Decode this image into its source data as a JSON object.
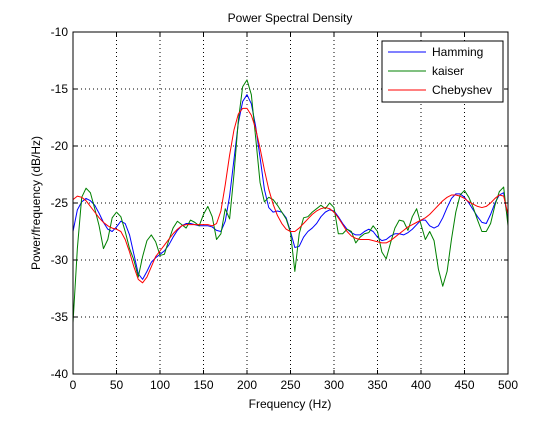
{
  "chart_data": {
    "type": "line",
    "title": "Power Spectral Density",
    "xlabel": "Frequency (Hz)",
    "ylabel": "Power/frequency (dB/Hz)",
    "xlim": [
      0,
      500
    ],
    "ylim": [
      -40,
      -10
    ],
    "xticks": [
      0,
      50,
      100,
      150,
      200,
      250,
      300,
      350,
      400,
      450,
      500
    ],
    "yticks": [
      -40,
      -35,
      -30,
      -25,
      -20,
      -15,
      -10
    ],
    "xtick_labels": [
      "0",
      "50",
      "100",
      "150",
      "200",
      "250",
      "300",
      "350",
      "400",
      "450",
      "500"
    ],
    "ytick_labels": [
      "-40",
      "-35",
      "-30",
      "-25",
      "-20",
      "-15",
      "-10"
    ],
    "grid": true,
    "legend_position": "top-right",
    "series": [
      {
        "name": "Hamming",
        "color": "#0000ff",
        "x": [
          0,
          5,
          10,
          15,
          20,
          25,
          30,
          35,
          40,
          45,
          50,
          55,
          60,
          65,
          70,
          75,
          80,
          85,
          90,
          95,
          100,
          105,
          110,
          115,
          120,
          125,
          130,
          135,
          140,
          145,
          150,
          155,
          160,
          165,
          170,
          175,
          180,
          185,
          190,
          195,
          200,
          205,
          210,
          215,
          220,
          225,
          230,
          235,
          240,
          245,
          250,
          255,
          260,
          265,
          270,
          275,
          280,
          285,
          290,
          295,
          300,
          305,
          310,
          315,
          320,
          325,
          330,
          335,
          340,
          345,
          350,
          355,
          360,
          365,
          370,
          375,
          380,
          385,
          390,
          395,
          400,
          405,
          410,
          415,
          420,
          425,
          430,
          435,
          440,
          445,
          450,
          455,
          460,
          465,
          470,
          475,
          480,
          485,
          490,
          495,
          500
        ],
        "values": [
          -27.5,
          -25.6,
          -24.9,
          -24.6,
          -24.8,
          -25.2,
          -25.9,
          -26.7,
          -27.3,
          -27.5,
          -27.1,
          -26.6,
          -26.8,
          -27.8,
          -29.5,
          -31.2,
          -31.7,
          -31.0,
          -30.2,
          -29.8,
          -29.5,
          -29.2,
          -28.7,
          -28.0,
          -27.4,
          -27.0,
          -26.8,
          -26.8,
          -26.9,
          -27.0,
          -27.0,
          -27.0,
          -27.1,
          -27.4,
          -27.5,
          -26.6,
          -24.4,
          -21.2,
          -18.0,
          -16.1,
          -15.5,
          -16.3,
          -18.3,
          -21.0,
          -23.8,
          -25.4,
          -25.8,
          -25.7,
          -25.8,
          -26.3,
          -27.5,
          -28.9,
          -28.8,
          -28.0,
          -27.5,
          -27.2,
          -26.8,
          -26.2,
          -25.8,
          -25.6,
          -25.7,
          -26.2,
          -26.8,
          -27.3,
          -27.6,
          -27.8,
          -27.8,
          -27.5,
          -27.3,
          -27.5,
          -28.0,
          -28.3,
          -28.2,
          -27.9,
          -27.7,
          -27.7,
          -27.8,
          -27.6,
          -27.3,
          -26.9,
          -26.5,
          -26.5,
          -27.0,
          -27.2,
          -27.0,
          -26.3,
          -25.4,
          -24.6,
          -24.2,
          -24.2,
          -24.5,
          -25.0,
          -25.6,
          -26.2,
          -26.7,
          -26.8,
          -26.0,
          -25.0,
          -24.3,
          -24.1,
          -26.6
        ]
      },
      {
        "name": "kaiser",
        "color": "#008000",
        "x": [
          0,
          5,
          10,
          15,
          20,
          25,
          30,
          35,
          40,
          45,
          50,
          55,
          60,
          65,
          70,
          75,
          80,
          85,
          90,
          95,
          100,
          105,
          110,
          115,
          120,
          125,
          130,
          135,
          140,
          145,
          150,
          155,
          160,
          165,
          170,
          175,
          180,
          185,
          190,
          195,
          200,
          205,
          210,
          215,
          220,
          225,
          230,
          235,
          240,
          245,
          250,
          255,
          260,
          265,
          270,
          275,
          280,
          285,
          290,
          295,
          300,
          305,
          310,
          315,
          320,
          325,
          330,
          335,
          340,
          345,
          350,
          355,
          360,
          365,
          370,
          375,
          380,
          385,
          390,
          395,
          400,
          405,
          410,
          415,
          420,
          425,
          430,
          435,
          440,
          445,
          450,
          455,
          460,
          465,
          470,
          475,
          480,
          485,
          490,
          495,
          500
        ],
        "values": [
          -35.5,
          -29.0,
          -24.5,
          -23.7,
          -24.1,
          -25.5,
          -27.0,
          -29.0,
          -28.2,
          -26.3,
          -25.8,
          -26.2,
          -27.5,
          -29.0,
          -30.0,
          -31.5,
          -29.7,
          -28.3,
          -27.8,
          -28.4,
          -29.6,
          -29.5,
          -28.3,
          -27.2,
          -26.6,
          -26.9,
          -27.2,
          -26.5,
          -26.7,
          -27.0,
          -26.0,
          -25.3,
          -26.2,
          -28.2,
          -27.7,
          -25.5,
          -26.4,
          -22.5,
          -17.8,
          -14.8,
          -14.2,
          -15.5,
          -19.3,
          -23.2,
          -24.9,
          -24.5,
          -24.7,
          -25.2,
          -25.8,
          -26.4,
          -27.6,
          -31.0,
          -27.7,
          -26.3,
          -26.2,
          -25.8,
          -25.5,
          -25.2,
          -25.5,
          -25.0,
          -25.4,
          -27.7,
          -27.7,
          -27.3,
          -27.5,
          -28.5,
          -28.0,
          -27.7,
          -27.6,
          -27.0,
          -27.5,
          -29.3,
          -29.9,
          -28.5,
          -27.2,
          -26.5,
          -26.6,
          -27.4,
          -26.2,
          -25.5,
          -26.9,
          -28.2,
          -27.5,
          -28.3,
          -30.8,
          -32.3,
          -31.0,
          -28.2,
          -25.8,
          -24.3,
          -23.9,
          -24.5,
          -25.4,
          -26.5,
          -27.5,
          -27.5,
          -26.8,
          -25.2,
          -24.0,
          -23.6,
          -27.0
        ]
      },
      {
        "name": "Chebyshev",
        "color": "#ff0000",
        "x": [
          0,
          5,
          10,
          15,
          20,
          25,
          30,
          35,
          40,
          45,
          50,
          55,
          60,
          65,
          70,
          75,
          80,
          85,
          90,
          95,
          100,
          105,
          110,
          115,
          120,
          125,
          130,
          135,
          140,
          145,
          150,
          155,
          160,
          165,
          170,
          175,
          180,
          185,
          190,
          195,
          200,
          205,
          210,
          215,
          220,
          225,
          230,
          235,
          240,
          245,
          250,
          255,
          260,
          265,
          270,
          275,
          280,
          285,
          290,
          295,
          300,
          305,
          310,
          315,
          320,
          325,
          330,
          335,
          340,
          345,
          350,
          355,
          360,
          365,
          370,
          375,
          380,
          385,
          390,
          395,
          400,
          405,
          410,
          415,
          420,
          425,
          430,
          435,
          440,
          445,
          450,
          455,
          460,
          465,
          470,
          475,
          480,
          485,
          490,
          495,
          500
        ],
        "values": [
          -24.7,
          -24.4,
          -24.5,
          -24.8,
          -25.3,
          -25.8,
          -26.3,
          -26.7,
          -27.0,
          -27.2,
          -27.3,
          -27.5,
          -28.2,
          -29.3,
          -30.6,
          -31.7,
          -32.0,
          -31.5,
          -30.6,
          -29.7,
          -29.2,
          -28.7,
          -28.2,
          -27.7,
          -27.3,
          -27.0,
          -26.9,
          -26.9,
          -26.9,
          -26.9,
          -26.9,
          -26.9,
          -27.0,
          -26.8,
          -25.7,
          -23.4,
          -20.8,
          -18.6,
          -17.2,
          -16.7,
          -16.7,
          -17.3,
          -18.5,
          -20.2,
          -22.1,
          -23.8,
          -25.1,
          -26.1,
          -26.8,
          -27.3,
          -27.5,
          -27.5,
          -27.2,
          -26.8,
          -26.4,
          -26.0,
          -25.7,
          -25.5,
          -25.4,
          -25.5,
          -25.8,
          -26.3,
          -26.9,
          -27.5,
          -27.9,
          -28.1,
          -28.2,
          -28.2,
          -28.2,
          -28.3,
          -28.4,
          -28.5,
          -28.5,
          -28.3,
          -28.0,
          -27.7,
          -27.4,
          -27.1,
          -26.9,
          -26.7,
          -26.5,
          -26.3,
          -26.0,
          -25.6,
          -25.2,
          -24.8,
          -24.5,
          -24.3,
          -24.3,
          -24.4,
          -24.6,
          -24.9,
          -25.1,
          -25.3,
          -25.4,
          -25.3,
          -25.0,
          -24.6,
          -24.3,
          -24.4,
          -26.0
        ]
      }
    ]
  }
}
